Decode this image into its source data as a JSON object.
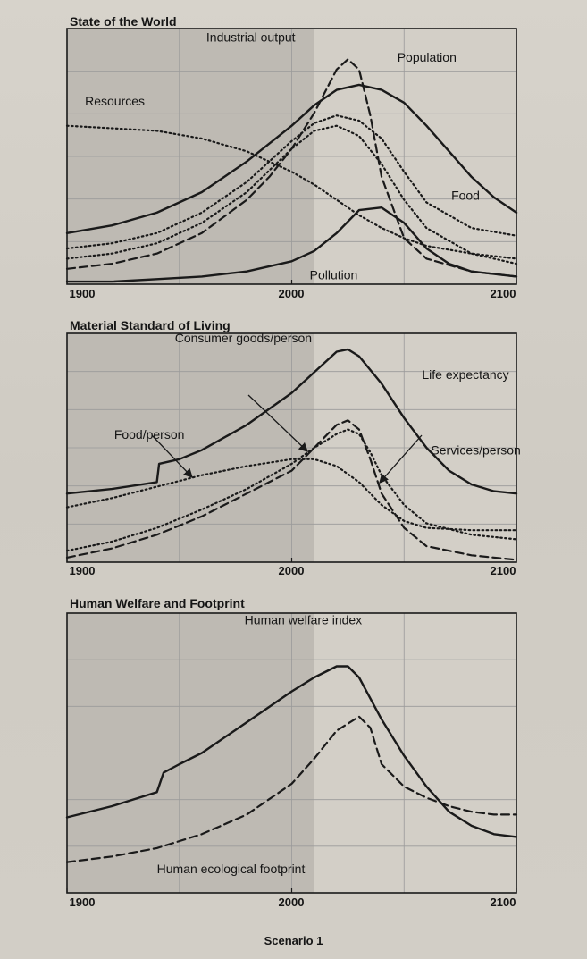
{
  "caption": "Scenario 1",
  "colors": {
    "ink": "#1a1a1a",
    "frame": "#1a1a1a",
    "grid": "#9a9a9a",
    "shaded_region": "#b7b3ac",
    "background": "#d3cfc7"
  },
  "chart_data": [
    {
      "type": "line",
      "title": "State of the World",
      "x_tick_labels": [
        "1900",
        "2000",
        "2100"
      ],
      "xlim": [
        1900,
        2100
      ],
      "ylim": [
        0,
        1
      ],
      "shaded_x_range": [
        1900,
        2010
      ],
      "grid": true,
      "series": [
        {
          "name": "Resources",
          "style": "dotted",
          "x": [
            1900,
            1920,
            1940,
            1960,
            1980,
            2000,
            2010,
            2020,
            2030,
            2040,
            2050,
            2060,
            2080,
            2100
          ],
          "y": [
            0.62,
            0.61,
            0.6,
            0.57,
            0.52,
            0.44,
            0.39,
            0.33,
            0.27,
            0.22,
            0.18,
            0.15,
            0.12,
            0.1
          ]
        },
        {
          "name": "Industrial output",
          "style": "dashed",
          "x": [
            1900,
            1920,
            1940,
            1960,
            1980,
            1990,
            2000,
            2010,
            2020,
            2025,
            2030,
            2035,
            2040,
            2050,
            2060,
            2080,
            2100
          ],
          "y": [
            0.06,
            0.08,
            0.12,
            0.2,
            0.33,
            0.42,
            0.53,
            0.67,
            0.84,
            0.88,
            0.84,
            0.66,
            0.42,
            0.18,
            0.1,
            0.05,
            0.03
          ]
        },
        {
          "name": "Population",
          "style": "solid",
          "x": [
            1900,
            1920,
            1940,
            1960,
            1980,
            2000,
            2010,
            2020,
            2030,
            2040,
            2050,
            2060,
            2070,
            2080,
            2090,
            2100
          ],
          "y": [
            0.2,
            0.23,
            0.28,
            0.36,
            0.48,
            0.62,
            0.7,
            0.76,
            0.78,
            0.76,
            0.71,
            0.62,
            0.52,
            0.42,
            0.34,
            0.28
          ]
        },
        {
          "name": "Food",
          "style": "dotted",
          "x": [
            1900,
            1920,
            1940,
            1960,
            1980,
            2000,
            2010,
            2020,
            2030,
            2040,
            2050,
            2060,
            2080,
            2100
          ],
          "y": [
            0.14,
            0.16,
            0.2,
            0.28,
            0.4,
            0.56,
            0.63,
            0.66,
            0.64,
            0.57,
            0.44,
            0.32,
            0.22,
            0.19
          ]
        },
        {
          "name": "",
          "style": "dotted",
          "x": [
            1900,
            1920,
            1940,
            1960,
            1980,
            2000,
            2010,
            2020,
            2030,
            2040,
            2050,
            2060,
            2080,
            2100
          ],
          "y": [
            0.1,
            0.12,
            0.16,
            0.24,
            0.36,
            0.53,
            0.6,
            0.62,
            0.58,
            0.47,
            0.33,
            0.22,
            0.12,
            0.08
          ]
        },
        {
          "name": "Pollution",
          "style": "solid",
          "x": [
            1900,
            1920,
            1940,
            1960,
            1980,
            2000,
            2010,
            2020,
            2030,
            2040,
            2050,
            2060,
            2070,
            2080,
            2100
          ],
          "y": [
            0.01,
            0.01,
            0.02,
            0.03,
            0.05,
            0.09,
            0.13,
            0.2,
            0.29,
            0.3,
            0.24,
            0.14,
            0.08,
            0.05,
            0.03
          ]
        }
      ],
      "annotations": [
        {
          "text": "Resources",
          "x": 1908,
          "y": 0.7
        },
        {
          "text": "Industrial output",
          "x": 1962,
          "y": 0.95
        },
        {
          "text": "Population",
          "x": 2047,
          "y": 0.87
        },
        {
          "text": "Food",
          "x": 2071,
          "y": 0.33
        },
        {
          "text": "Pollution",
          "x": 2008,
          "y": 0.02
        }
      ]
    },
    {
      "type": "line",
      "title": "Material Standard of Living",
      "x_tick_labels": [
        "1900",
        "2000",
        "2100"
      ],
      "xlim": [
        1900,
        2100
      ],
      "ylim": [
        0,
        1
      ],
      "shaded_x_range": [
        1900,
        2010
      ],
      "grid": true,
      "series": [
        {
          "name": "Life expectancy",
          "style": "solid",
          "x": [
            1900,
            1920,
            1940,
            1941,
            1950,
            1960,
            1980,
            2000,
            2010,
            2020,
            2025,
            2030,
            2040,
            2050,
            2060,
            2070,
            2080,
            2090,
            2100
          ],
          "y": [
            0.3,
            0.32,
            0.35,
            0.43,
            0.45,
            0.49,
            0.6,
            0.74,
            0.83,
            0.92,
            0.93,
            0.9,
            0.78,
            0.63,
            0.5,
            0.4,
            0.34,
            0.31,
            0.3
          ]
        },
        {
          "name": "Food/person",
          "style": "dotted",
          "x": [
            1900,
            1920,
            1940,
            1960,
            1980,
            2000,
            2010,
            2020,
            2030,
            2040,
            2050,
            2060,
            2080,
            2100
          ],
          "y": [
            0.24,
            0.28,
            0.33,
            0.38,
            0.42,
            0.45,
            0.45,
            0.42,
            0.35,
            0.25,
            0.18,
            0.15,
            0.14,
            0.14
          ]
        },
        {
          "name": "Consumer goods/person",
          "style": "dashed",
          "x": [
            1900,
            1920,
            1940,
            1960,
            1980,
            2000,
            2010,
            2020,
            2025,
            2030,
            2035,
            2040,
            2050,
            2060,
            2080,
            2100
          ],
          "y": [
            0.02,
            0.06,
            0.12,
            0.2,
            0.3,
            0.4,
            0.5,
            0.6,
            0.62,
            0.58,
            0.45,
            0.3,
            0.15,
            0.07,
            0.03,
            0.01
          ]
        },
        {
          "name": "Services/person",
          "style": "dotted",
          "x": [
            1900,
            1920,
            1940,
            1960,
            1980,
            2000,
            2010,
            2020,
            2025,
            2030,
            2035,
            2040,
            2050,
            2060,
            2080,
            2100
          ],
          "y": [
            0.05,
            0.09,
            0.15,
            0.23,
            0.32,
            0.43,
            0.5,
            0.56,
            0.58,
            0.56,
            0.48,
            0.38,
            0.25,
            0.17,
            0.12,
            0.1
          ]
        }
      ],
      "annotations": [
        {
          "text": "Consumer goods/person",
          "x": 1948,
          "y": 0.96
        },
        {
          "text": "Life expectancy",
          "x": 2058,
          "y": 0.8
        },
        {
          "text": "Food/person",
          "x": 1921,
          "y": 0.54
        },
        {
          "text": "Services/person",
          "x": 2062,
          "y": 0.47
        }
      ]
    },
    {
      "type": "line",
      "title": "Human Welfare and Footprint",
      "x_tick_labels": [
        "1900",
        "2000",
        "2100"
      ],
      "xlim": [
        1900,
        2100
      ],
      "ylim": [
        0,
        1
      ],
      "shaded_x_range": [
        1900,
        2010
      ],
      "grid": true,
      "series": [
        {
          "name": "Human welfare index",
          "style": "solid",
          "x": [
            1900,
            1920,
            1940,
            1943,
            1950,
            1960,
            1980,
            2000,
            2010,
            2020,
            2025,
            2030,
            2040,
            2050,
            2060,
            2070,
            2080,
            2090,
            2100
          ],
          "y": [
            0.27,
            0.31,
            0.36,
            0.43,
            0.46,
            0.5,
            0.61,
            0.72,
            0.77,
            0.81,
            0.81,
            0.77,
            0.62,
            0.49,
            0.38,
            0.29,
            0.24,
            0.21,
            0.2
          ]
        },
        {
          "name": "Human ecological footprint",
          "style": "dashed",
          "x": [
            1900,
            1920,
            1940,
            1960,
            1980,
            2000,
            2010,
            2020,
            2030,
            2035,
            2040,
            2050,
            2060,
            2070,
            2080,
            2090,
            2100
          ],
          "y": [
            0.11,
            0.13,
            0.16,
            0.21,
            0.28,
            0.39,
            0.48,
            0.58,
            0.63,
            0.59,
            0.46,
            0.38,
            0.34,
            0.31,
            0.29,
            0.28,
            0.28
          ]
        }
      ],
      "annotations": [
        {
          "text": "Human welfare index",
          "x": 1979,
          "y": 0.96
        },
        {
          "text": "Human ecological footprint",
          "x": 1940,
          "y": 0.07
        }
      ]
    }
  ]
}
